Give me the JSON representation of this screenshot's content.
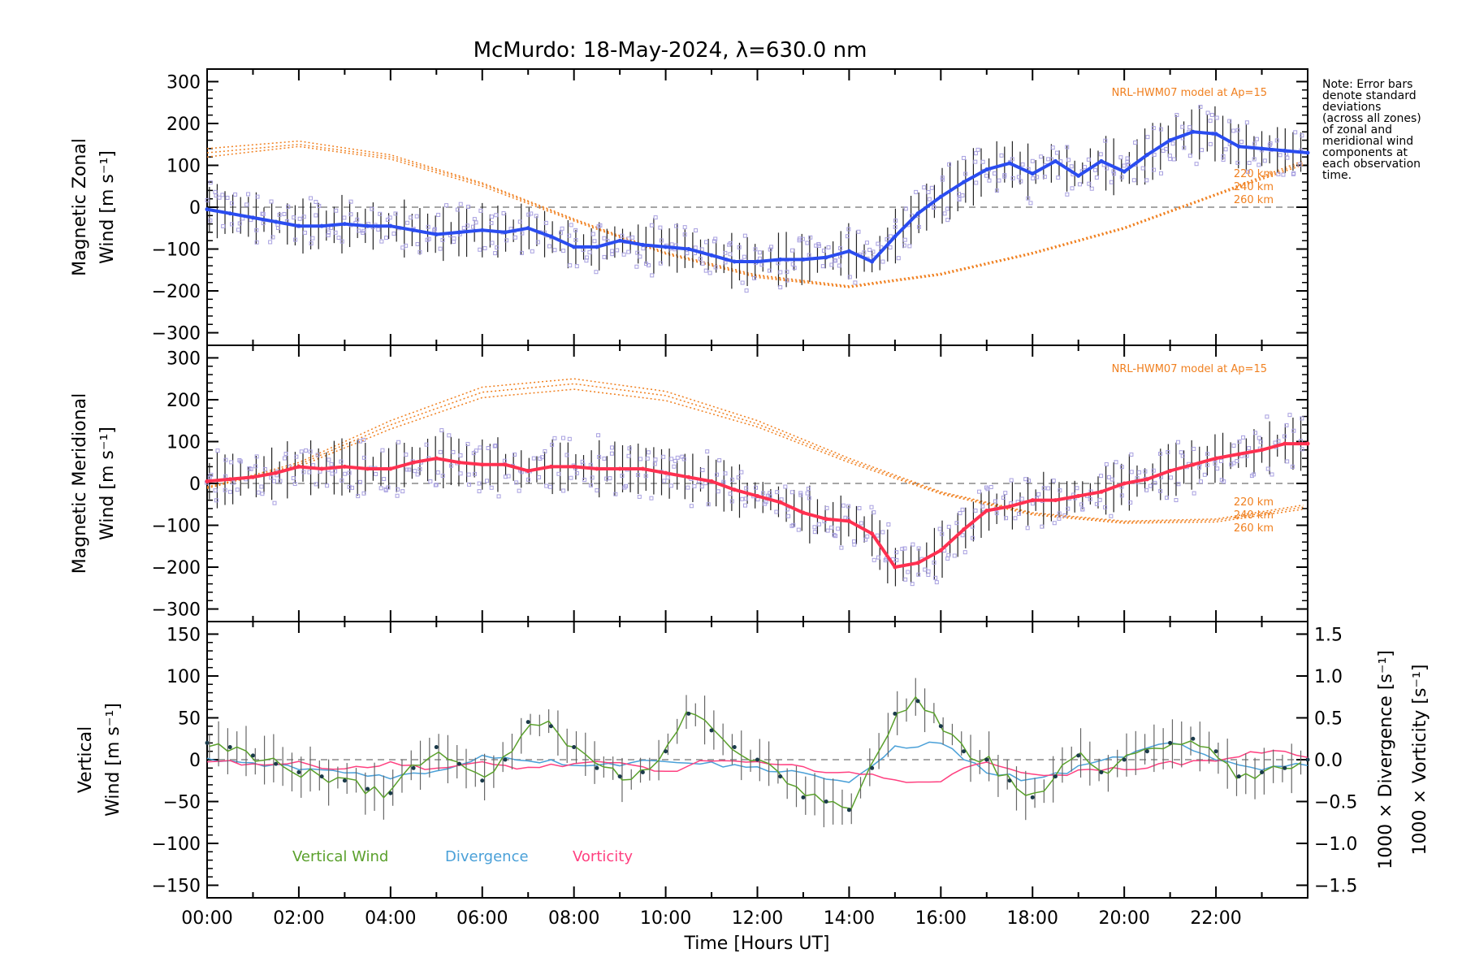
{
  "title": "McMurdo: 18-May-2024, λ=630.0 nm",
  "note_lines": [
    "Note: Error bars",
    "denote standard",
    "deviations",
    "(across all zones)",
    "of zonal and",
    "meridional wind",
    "components at",
    "each observation",
    "time."
  ],
  "model_label": "NRL-HWM07 model at Ap=15",
  "altitude_labels": [
    "220 km",
    "240 km",
    "260 km"
  ],
  "colors": {
    "zonal": "#2a4cf0",
    "meridional": "#ff3050",
    "vertical": "#5aa02c",
    "divergence": "#4aa0d8",
    "vorticity": "#ff4080",
    "model": "#f08020",
    "scatter": "#a8a0e0"
  },
  "xaxis": {
    "label": "Time [Hours UT]",
    "range": [
      0,
      24
    ],
    "tick_labels": [
      "00:00",
      "02:00",
      "04:00",
      "06:00",
      "08:00",
      "10:00",
      "12:00",
      "14:00",
      "16:00",
      "18:00",
      "20:00",
      "22:00"
    ]
  },
  "chart_data": [
    {
      "type": "line",
      "panel": "zonal",
      "ylabel_lines": [
        "Magnetic Zonal",
        "Wind [m s⁻¹]"
      ],
      "ylim": [
        -330,
        330
      ],
      "y_ticks": [
        "300",
        "200",
        "100",
        "0",
        "−100",
        "−200",
        "−300"
      ],
      "series": [
        {
          "x": [
            0.0,
            0.5,
            1.0,
            1.5,
            2.0,
            2.5,
            3.0,
            3.5,
            4.0,
            4.5,
            5.0,
            5.5,
            6.0,
            6.5,
            7.0,
            7.5,
            8.0,
            8.5,
            9.0,
            9.5,
            10.0,
            10.5,
            11.0,
            11.5,
            12.0,
            12.5,
            13.0,
            13.5,
            14.0,
            14.5,
            15.0,
            15.5,
            16.0,
            16.5,
            17.0,
            17.5,
            18.0,
            18.5,
            19.0,
            19.5,
            20.0,
            20.5,
            21.0,
            21.5,
            22.0,
            22.5,
            23.0,
            23.5,
            24.0
          ],
          "y": [
            -5,
            -15,
            -25,
            -35,
            -45,
            -45,
            -40,
            -45,
            -45,
            -55,
            -65,
            -60,
            -55,
            -60,
            -50,
            -70,
            -95,
            -95,
            -80,
            -90,
            -95,
            -100,
            -115,
            -130,
            -130,
            -125,
            -125,
            -120,
            -105,
            -130,
            -70,
            -15,
            25,
            60,
            90,
            105,
            80,
            110,
            75,
            110,
            85,
            125,
            160,
            180,
            175,
            145,
            140,
            135,
            130
          ]
        }
      ],
      "model_curves": [
        {
          "x": [
            0,
            2,
            4,
            6,
            8,
            10,
            12,
            14,
            16,
            18,
            20,
            22,
            24
          ],
          "y": [
            130,
            150,
            120,
            55,
            -30,
            -110,
            -165,
            -190,
            -160,
            -110,
            -50,
            30,
            110
          ]
        },
        {
          "x": [
            0,
            2,
            4,
            6,
            8,
            10,
            12,
            14,
            16,
            18,
            20,
            22,
            24
          ],
          "y": [
            140,
            158,
            125,
            58,
            -28,
            -108,
            -162,
            -188,
            -158,
            -108,
            -48,
            32,
            115
          ]
        },
        {
          "x": [
            0,
            2,
            4,
            6,
            8,
            10,
            12,
            14,
            16,
            18,
            20,
            22,
            24
          ],
          "y": [
            120,
            145,
            115,
            50,
            -33,
            -112,
            -168,
            -192,
            -162,
            -112,
            -52,
            28,
            105
          ]
        }
      ]
    },
    {
      "type": "line",
      "panel": "meridional",
      "ylabel_lines": [
        "Magnetic Meridional",
        "Wind [m s⁻¹]"
      ],
      "ylim": [
        -330,
        330
      ],
      "y_ticks": [
        "300",
        "200",
        "100",
        "0",
        "−100",
        "−200",
        "−300"
      ],
      "series": [
        {
          "x": [
            0.0,
            0.5,
            1.0,
            1.5,
            2.0,
            2.5,
            3.0,
            3.5,
            4.0,
            4.5,
            5.0,
            5.5,
            6.0,
            6.5,
            7.0,
            7.5,
            8.0,
            8.5,
            9.0,
            9.5,
            10.0,
            10.5,
            11.0,
            11.5,
            12.0,
            12.5,
            13.0,
            13.5,
            14.0,
            14.5,
            15.0,
            15.5,
            16.0,
            16.5,
            17.0,
            17.5,
            18.0,
            18.5,
            19.0,
            19.5,
            20.0,
            20.5,
            21.0,
            21.5,
            22.0,
            22.5,
            23.0,
            23.5,
            24.0
          ],
          "y": [
            5,
            10,
            15,
            25,
            40,
            35,
            40,
            35,
            35,
            50,
            60,
            50,
            45,
            45,
            30,
            40,
            40,
            35,
            35,
            35,
            25,
            15,
            5,
            -15,
            -30,
            -45,
            -70,
            -85,
            -90,
            -120,
            -200,
            -190,
            -160,
            -110,
            -65,
            -55,
            -40,
            -40,
            -30,
            -20,
            0,
            10,
            30,
            45,
            60,
            70,
            80,
            95,
            95
          ]
        }
      ],
      "model_curves": [
        {
          "x": [
            0,
            2,
            4,
            6,
            8,
            10,
            12,
            14,
            16,
            18,
            20,
            22,
            24
          ],
          "y": [
            -10,
            50,
            150,
            230,
            250,
            220,
            150,
            60,
            -20,
            -70,
            -90,
            -85,
            -50
          ]
        },
        {
          "x": [
            0,
            2,
            4,
            6,
            8,
            10,
            12,
            14,
            16,
            18,
            20,
            22,
            24
          ],
          "y": [
            -12,
            45,
            140,
            218,
            238,
            210,
            142,
            55,
            -22,
            -72,
            -92,
            -88,
            -55
          ]
        },
        {
          "x": [
            0,
            2,
            4,
            6,
            8,
            10,
            12,
            14,
            16,
            18,
            20,
            22,
            24
          ],
          "y": [
            -8,
            40,
            130,
            205,
            225,
            198,
            135,
            50,
            -25,
            -75,
            -95,
            -92,
            -60
          ]
        }
      ]
    },
    {
      "type": "line",
      "panel": "vertical",
      "ylabel_lines": [
        "Vertical",
        "Wind [m s⁻¹]"
      ],
      "right_label_divergence": "1000 × Divergence [s⁻¹]",
      "right_label_vorticity": "1000 × Vorticity [s⁻¹]",
      "ylim": [
        -165,
        165
      ],
      "y_ticks": [
        "150",
        "100",
        "50",
        "0",
        "−50",
        "−100",
        "−150"
      ],
      "y2lim": [
        -1.65,
        1.65
      ],
      "y2_ticks": [
        "1.5",
        "1.0",
        "0.5",
        "0.0",
        "−0.5",
        "−1.0",
        "−1.5"
      ],
      "legend": [
        "Vertical Wind",
        "Divergence",
        "Vorticity"
      ],
      "series": [
        {
          "name": "Vertical Wind",
          "x": [
            0.0,
            0.5,
            1.0,
            1.5,
            2.0,
            2.5,
            3.0,
            3.5,
            4.0,
            4.5,
            5.0,
            5.5,
            6.0,
            6.5,
            7.0,
            7.5,
            8.0,
            8.5,
            9.0,
            9.5,
            10.0,
            10.5,
            11.0,
            11.5,
            12.0,
            12.5,
            13.0,
            13.5,
            14.0,
            14.5,
            15.0,
            15.5,
            16.0,
            16.5,
            17.0,
            17.5,
            18.0,
            18.5,
            19.0,
            19.5,
            20.0,
            20.5,
            21.0,
            21.5,
            22.0,
            22.5,
            23.0,
            23.5,
            24.0
          ],
          "y": [
            20,
            15,
            5,
            -5,
            -15,
            -20,
            -25,
            -35,
            -40,
            -10,
            15,
            -5,
            -25,
            0,
            45,
            40,
            15,
            -10,
            -20,
            -15,
            10,
            55,
            35,
            15,
            0,
            -20,
            -45,
            -50,
            -60,
            -10,
            55,
            70,
            40,
            10,
            0,
            -25,
            -45,
            -20,
            5,
            -15,
            0,
            10,
            20,
            25,
            10,
            -20,
            -15,
            -10,
            0
          ]
        },
        {
          "name": "Divergence",
          "x": [
            0,
            1,
            2,
            3,
            4,
            5,
            6,
            7,
            8,
            9,
            10,
            11,
            12,
            13,
            14,
            15,
            16,
            17,
            18,
            19,
            20,
            21,
            22,
            23,
            24
          ],
          "y": [
            0.0,
            -0.05,
            -0.1,
            -0.15,
            -0.2,
            -0.15,
            0.05,
            0.0,
            -0.05,
            -0.05,
            0.0,
            -0.05,
            -0.1,
            -0.15,
            -0.3,
            0.15,
            0.2,
            -0.15,
            -0.25,
            -0.1,
            0.05,
            0.2,
            0.0,
            -0.1,
            -0.05
          ]
        },
        {
          "name": "Vorticity",
          "x": [
            0,
            1,
            2,
            3,
            4,
            5,
            6,
            7,
            8,
            9,
            10,
            11,
            12,
            13,
            14,
            15,
            16,
            17,
            18,
            19,
            20,
            21,
            22,
            23,
            24
          ],
          "y": [
            0.0,
            -0.05,
            -0.05,
            -0.1,
            -0.05,
            -0.1,
            -0.05,
            -0.1,
            -0.05,
            -0.05,
            -0.15,
            0.0,
            -0.05,
            -0.1,
            -0.15,
            -0.25,
            -0.25,
            0.0,
            -0.2,
            -0.15,
            -0.1,
            -0.05,
            0.0,
            0.1,
            0.05
          ]
        }
      ]
    }
  ]
}
